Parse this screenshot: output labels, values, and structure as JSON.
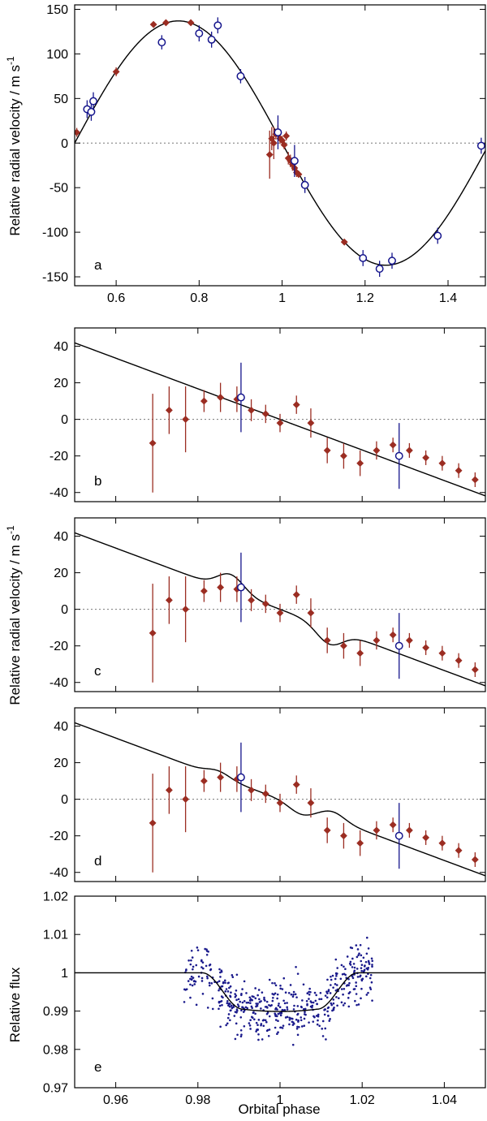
{
  "figure": {
    "ylabel_top": "Relative radial velocity / m s",
    "ylabel_mid": "Relative radial velocity / m s",
    "ylabel_exp": "-1",
    "ylabel_flux": "Relative flux",
    "xlabel": "Orbital phase"
  },
  "colors": {
    "red": "#9b2d22",
    "blue": "#14148c",
    "curve": "#000000",
    "flux": "#1a1a8c"
  },
  "chart_data": [
    {
      "id": "a",
      "type": "scatter",
      "label": "a",
      "xlim": [
        0.5,
        1.49
      ],
      "ylim": [
        -160,
        155
      ],
      "xticks": [
        0.6,
        0.8,
        1.0,
        1.2,
        1.4
      ],
      "xtick_labels": [
        "0.6",
        "0.8",
        "1",
        "1.2",
        "1.4"
      ],
      "yticks": [
        150,
        100,
        50,
        0,
        -50,
        -100,
        -150
      ],
      "ytick_labels": [
        "150",
        "100",
        "50",
        "0",
        "-50",
        "-100",
        "-150"
      ],
      "model": {
        "kind": "sine",
        "amplitude": 137,
        "center": 0.75
      },
      "series": [
        {
          "name": "red",
          "marker": "diamond",
          "points": [
            [
              0.505,
              12,
              5
            ],
            [
              0.6,
              80,
              5
            ],
            [
              0.69,
              133,
              3
            ],
            [
              0.72,
              135,
              3
            ],
            [
              0.78,
              135,
              3
            ],
            [
              0.97,
              -13,
              27
            ],
            [
              0.975,
              5,
              13
            ],
            [
              0.98,
              0,
              18
            ],
            [
              0.985,
              10,
              6
            ],
            [
              0.99,
              12,
              8
            ],
            [
              0.995,
              5,
              6
            ],
            [
              1.0,
              3,
              5
            ],
            [
              1.005,
              -2,
              5
            ],
            [
              1.01,
              8,
              5
            ],
            [
              1.015,
              -17,
              7
            ],
            [
              1.02,
              -20,
              7
            ],
            [
              1.025,
              -24,
              7
            ],
            [
              1.03,
              -28,
              5
            ],
            [
              1.035,
              -33,
              5
            ],
            [
              1.04,
              -35,
              4
            ],
            [
              1.15,
              -111,
              3
            ]
          ]
        },
        {
          "name": "blue",
          "marker": "circle",
          "points": [
            [
              0.53,
              38,
              10
            ],
            [
              0.54,
              35,
              10
            ],
            [
              0.545,
              47,
              10
            ],
            [
              0.71,
              113,
              8
            ],
            [
              0.8,
              123,
              9
            ],
            [
              0.83,
              116,
              9
            ],
            [
              0.845,
              132,
              9
            ],
            [
              0.9,
              75,
              8
            ],
            [
              0.99,
              12,
              19
            ],
            [
              1.03,
              -20,
              18
            ],
            [
              1.055,
              -47,
              9
            ],
            [
              1.195,
              -129,
              9
            ],
            [
              1.235,
              -141,
              9
            ],
            [
              1.265,
              -132,
              9
            ],
            [
              1.375,
              -104,
              9
            ],
            [
              1.48,
              -3,
              9
            ]
          ]
        }
      ]
    },
    {
      "id": "b",
      "type": "scatter",
      "label": "b",
      "xlim": [
        0.95,
        1.05
      ],
      "ylim": [
        -45,
        50
      ],
      "xticks": [
        0.96,
        0.98,
        1.0,
        1.02,
        1.04
      ],
      "yticks": [
        40,
        20,
        0,
        -20,
        -40
      ],
      "ytick_labels": [
        "40",
        "20",
        "0",
        "-20",
        "-40"
      ],
      "model": {
        "kind": "linear",
        "slope": -837,
        "intercept": 0,
        "bumps": []
      },
      "series": [
        {
          "name": "red",
          "marker": "diamond",
          "points": [
            [
              0.969,
              -13,
              27
            ],
            [
              0.973,
              5,
              13
            ],
            [
              0.977,
              0,
              18
            ],
            [
              0.9815,
              10,
              6
            ],
            [
              0.9855,
              12,
              8
            ],
            [
              0.9895,
              11,
              7
            ],
            [
              0.993,
              5,
              6
            ],
            [
              0.9965,
              3,
              5
            ],
            [
              1.0,
              -2,
              5
            ],
            [
              1.004,
              8,
              5
            ],
            [
              1.0075,
              -2,
              8
            ],
            [
              1.0115,
              -17,
              7
            ],
            [
              1.0155,
              -20,
              7
            ],
            [
              1.0195,
              -24,
              7
            ],
            [
              1.0235,
              -17,
              5
            ],
            [
              1.0275,
              -14,
              4
            ],
            [
              1.0315,
              -17,
              4
            ],
            [
              1.0355,
              -21,
              4
            ],
            [
              1.0395,
              -24,
              4
            ],
            [
              1.0435,
              -28,
              4
            ],
            [
              1.0475,
              -33,
              4
            ],
            [
              1.0515,
              -29,
              4
            ],
            [
              1.0555,
              -33,
              4
            ],
            [
              1.0595,
              -35,
              4
            ]
          ]
        },
        {
          "name": "blue",
          "marker": "circle",
          "points": [
            [
              0.9905,
              12,
              19
            ],
            [
              1.029,
              -20,
              18
            ]
          ]
        }
      ]
    },
    {
      "id": "c",
      "type": "scatter",
      "label": "c",
      "xlim": [
        0.95,
        1.05
      ],
      "ylim": [
        -45,
        50
      ],
      "xticks": [
        0.96,
        0.98,
        1.0,
        1.02,
        1.04
      ],
      "yticks": [
        40,
        20,
        0,
        -20,
        -40
      ],
      "ytick_labels": [
        "40",
        "20",
        "0",
        "-20",
        "-40"
      ],
      "model": {
        "kind": "linear",
        "slope": -837,
        "intercept": 0,
        "bumps": [
          [
            0.988,
            9,
            0.0045
          ],
          [
            1.012,
            -9,
            0.0045
          ]
        ]
      },
      "series": [
        {
          "name": "red",
          "marker": "diamond",
          "points": [
            [
              0.969,
              -13,
              27
            ],
            [
              0.973,
              5,
              13
            ],
            [
              0.977,
              0,
              18
            ],
            [
              0.9815,
              10,
              6
            ],
            [
              0.9855,
              12,
              8
            ],
            [
              0.9895,
              11,
              7
            ],
            [
              0.993,
              5,
              6
            ],
            [
              0.9965,
              3,
              5
            ],
            [
              1.0,
              -2,
              5
            ],
            [
              1.004,
              8,
              5
            ],
            [
              1.0075,
              -2,
              8
            ],
            [
              1.0115,
              -17,
              7
            ],
            [
              1.0155,
              -20,
              7
            ],
            [
              1.0195,
              -24,
              7
            ],
            [
              1.0235,
              -17,
              5
            ],
            [
              1.0275,
              -14,
              4
            ],
            [
              1.0315,
              -17,
              4
            ],
            [
              1.0355,
              -21,
              4
            ],
            [
              1.0395,
              -24,
              4
            ],
            [
              1.0435,
              -28,
              4
            ],
            [
              1.0475,
              -33,
              4
            ],
            [
              1.0515,
              -29,
              4
            ],
            [
              1.0555,
              -33,
              4
            ],
            [
              1.0595,
              -35,
              4
            ]
          ]
        },
        {
          "name": "blue",
          "marker": "circle",
          "points": [
            [
              0.9905,
              12,
              19
            ],
            [
              1.029,
              -20,
              18
            ]
          ]
        }
      ]
    },
    {
      "id": "d",
      "type": "scatter",
      "label": "d",
      "xlim": [
        0.95,
        1.05
      ],
      "ylim": [
        -45,
        50
      ],
      "xticks": [
        0.96,
        0.98,
        1.0,
        1.02,
        1.04
      ],
      "yticks": [
        40,
        20,
        0,
        -20,
        -40
      ],
      "ytick_labels": [
        "40",
        "20",
        "0",
        "-20",
        "-40"
      ],
      "model": {
        "kind": "linear",
        "slope": -837,
        "intercept": 0,
        "bumps": [
          [
            0.985,
            3,
            0.004
          ],
          [
            1.005,
            -4,
            0.004
          ],
          [
            1.013,
            4,
            0.004
          ]
        ]
      },
      "series": [
        {
          "name": "red",
          "marker": "diamond",
          "points": [
            [
              0.969,
              -13,
              27
            ],
            [
              0.973,
              5,
              13
            ],
            [
              0.977,
              0,
              18
            ],
            [
              0.9815,
              10,
              6
            ],
            [
              0.9855,
              12,
              8
            ],
            [
              0.9895,
              11,
              7
            ],
            [
              0.993,
              5,
              6
            ],
            [
              0.9965,
              3,
              5
            ],
            [
              1.0,
              -2,
              5
            ],
            [
              1.004,
              8,
              5
            ],
            [
              1.0075,
              -2,
              8
            ],
            [
              1.0115,
              -17,
              7
            ],
            [
              1.0155,
              -20,
              7
            ],
            [
              1.0195,
              -24,
              7
            ],
            [
              1.0235,
              -17,
              5
            ],
            [
              1.0275,
              -14,
              4
            ],
            [
              1.0315,
              -17,
              4
            ],
            [
              1.0355,
              -21,
              4
            ],
            [
              1.0395,
              -24,
              4
            ],
            [
              1.0435,
              -28,
              4
            ],
            [
              1.0475,
              -33,
              4
            ],
            [
              1.0515,
              -29,
              4
            ],
            [
              1.0555,
              -33,
              4
            ],
            [
              1.0595,
              -35,
              4
            ]
          ]
        },
        {
          "name": "blue",
          "marker": "circle",
          "points": [
            [
              0.9905,
              12,
              19
            ],
            [
              1.029,
              -20,
              18
            ]
          ]
        }
      ]
    },
    {
      "id": "e",
      "type": "scatter",
      "label": "e",
      "xlim": [
        0.95,
        1.05
      ],
      "ylim": [
        0.97,
        1.02
      ],
      "xticks": [
        0.96,
        0.98,
        1.0,
        1.02,
        1.04
      ],
      "xtick_labels": [
        "0.96",
        "0.98",
        "1",
        "1.02",
        "1.04"
      ],
      "yticks": [
        1.02,
        1.01,
        1.0,
        0.99,
        0.98,
        0.97
      ],
      "ytick_labels": [
        "1.02",
        "1.01",
        "1",
        "0.99",
        "0.98",
        "0.97"
      ],
      "model": {
        "kind": "transit",
        "depth": 0.0095,
        "t1": 0.981,
        "t2": 0.991,
        "t3": 1.009,
        "t4": 1.019
      },
      "scatter_cloud": {
        "x_range": [
          0.9765,
          1.0225
        ],
        "count": 520,
        "noise_sd": 0.0055,
        "seed": 11
      }
    }
  ]
}
